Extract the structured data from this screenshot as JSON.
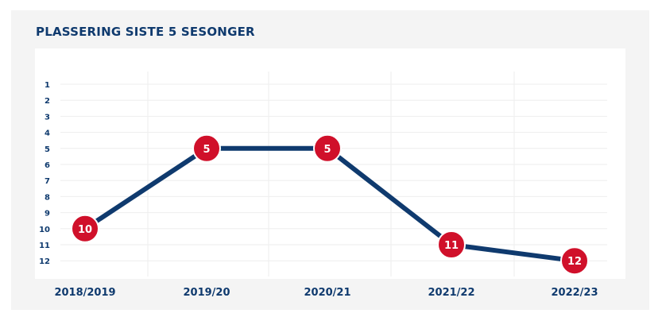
{
  "header": {
    "title": "PLASSERING SISTE 5 SESONGER"
  },
  "colors": {
    "line": "#0f3a6e",
    "marker": "#d0102a",
    "marker_text": "#ffffff",
    "text": "#0f3a6e",
    "card_background": "#f4f4f4",
    "panel_background": "#ffffff",
    "grid": "#eeeeee"
  },
  "chart_data": {
    "type": "line",
    "title": "PLASSERING SISTE 5 SESONGER",
    "xlabel": "",
    "ylabel": "",
    "categories": [
      "2018/2019",
      "2019/20",
      "2020/21",
      "2021/22",
      "2022/23"
    ],
    "series": [
      {
        "values": [
          10,
          5,
          5,
          11,
          12
        ]
      }
    ],
    "y_ticks": [
      "1",
      "2",
      "3",
      "4",
      "5",
      "6",
      "7",
      "8",
      "9",
      "10",
      "11",
      "12"
    ],
    "ylim": [
      1,
      12
    ],
    "y_inverted": true,
    "grid": true,
    "legend": "none"
  }
}
